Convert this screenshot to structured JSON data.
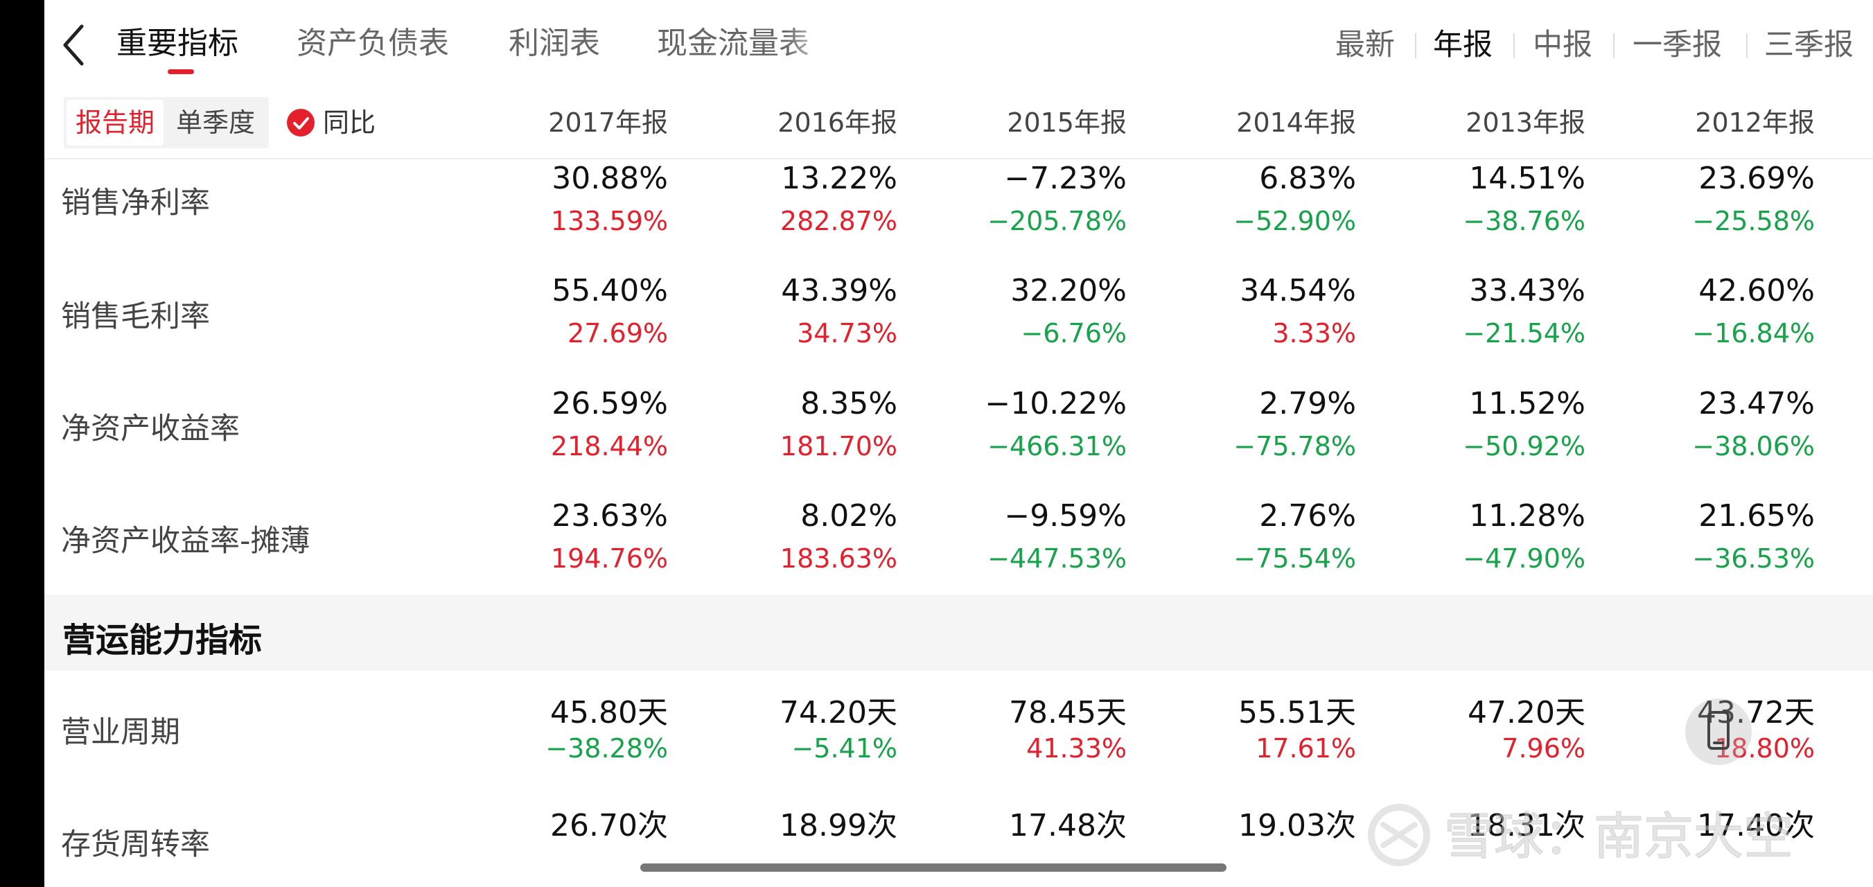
{
  "nav": {
    "tabs": [
      {
        "label": "重要指标"
      },
      {
        "label": "资产负债表"
      },
      {
        "label": "利润表"
      },
      {
        "label": "现金流量表"
      }
    ],
    "periods": [
      {
        "label": "最新"
      },
      {
        "label": "年报"
      },
      {
        "label": "中报"
      },
      {
        "label": "一季报"
      },
      {
        "label": "三季报"
      }
    ]
  },
  "filter": {
    "segment": [
      "报告期",
      "单季度"
    ],
    "yoy_label": "同比",
    "columns": [
      "2017年报",
      "2016年报",
      "2015年报",
      "2014年报",
      "2013年报",
      "2012年报"
    ]
  },
  "rows": [
    {
      "label": "销售净利率",
      "values": [
        "30.88%",
        "13.22%",
        "−7.23%",
        "6.83%",
        "14.51%",
        "23.69%"
      ],
      "yoy": [
        "133.59%",
        "282.87%",
        "−205.78%",
        "−52.90%",
        "−38.76%",
        "−25.58%"
      ]
    },
    {
      "label": "销售毛利率",
      "values": [
        "55.40%",
        "43.39%",
        "32.20%",
        "34.54%",
        "33.43%",
        "42.60%"
      ],
      "yoy": [
        "27.69%",
        "34.73%",
        "−6.76%",
        "3.33%",
        "−21.54%",
        "−16.84%"
      ]
    },
    {
      "label": "净资产收益率",
      "values": [
        "26.59%",
        "8.35%",
        "−10.22%",
        "2.79%",
        "11.52%",
        "23.47%"
      ],
      "yoy": [
        "218.44%",
        "181.70%",
        "−466.31%",
        "−75.78%",
        "−50.92%",
        "−38.06%"
      ]
    },
    {
      "label": "净资产收益率-摊薄",
      "values": [
        "23.63%",
        "8.02%",
        "−9.59%",
        "2.76%",
        "11.28%",
        "21.65%"
      ],
      "yoy": [
        "194.76%",
        "183.63%",
        "−447.53%",
        "−75.54%",
        "−47.90%",
        "−36.53%"
      ]
    }
  ],
  "section": {
    "title": "营运能力指标"
  },
  "rows2": [
    {
      "label": "营业周期",
      "values": [
        "45.80天",
        "74.20天",
        "78.45天",
        "55.51天",
        "47.20天",
        "43.72天"
      ],
      "yoy": [
        "−38.28%",
        "−5.41%",
        "41.33%",
        "17.61%",
        "7.96%",
        "18.80%"
      ]
    },
    {
      "label": "存货周转率",
      "values": [
        "26.70次",
        "18.99次",
        "17.48次",
        "19.03次",
        "18.31次",
        "17.40次"
      ]
    }
  ],
  "watermark": "雪球：南京大空",
  "colors": {
    "accent": "#e5202d",
    "up": "#e5202d",
    "down": "#17a34a"
  }
}
